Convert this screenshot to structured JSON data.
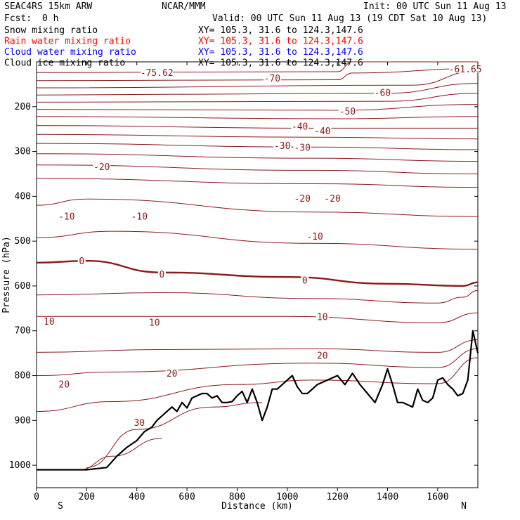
{
  "header": {
    "model": "SEAC4RS 15km ARW",
    "center": "NCAR/MMM",
    "init": "Init: 00 UTC Sun 11 Aug 13",
    "fcst_label": "Fcst:",
    "fcst_value": "0 h",
    "valid": "Valid: 00 UTC Sun 11 Aug 13 (19 CDT Sat 10 Aug 13)"
  },
  "fields": [
    {
      "label": "Snow mixing ratio",
      "xy": "XY= 105.3, 31.6 to 124.3,147.6",
      "color": "#000000"
    },
    {
      "label": "Rain water mixing ratio",
      "xy": "XY= 105.3, 31.6 to 124.3,147.6",
      "color": "#ff0000"
    },
    {
      "label": "Cloud water mixing ratio",
      "xy": "XY= 105.3, 31.6 to 124.3,147.6",
      "color": "#0000ff"
    },
    {
      "label": "Cloud ice mixing ratio",
      "xy": "XY= 105.3, 31.6 to 124.3,147.6",
      "color": "#000000"
    }
  ],
  "colors": {
    "contour": "#8b1a1a",
    "terrain": "#000000",
    "axis": "#000000"
  },
  "chart_data": {
    "type": "line",
    "xlabel": "Distance (km)",
    "ylabel": "Pressure (hPa)",
    "xlim": [
      0,
      1760
    ],
    "ylim": [
      1050,
      100
    ],
    "xticks": [
      0,
      200,
      400,
      600,
      800,
      1000,
      1200,
      1400,
      1600
    ],
    "yticks": [
      200,
      300,
      400,
      500,
      600,
      700,
      800,
      900,
      1000
    ],
    "endpoints": {
      "left": "S",
      "right": "N"
    },
    "temperature_contours": {
      "interval": 5,
      "units": "C",
      "levels": [
        {
          "label": "-75.62",
          "x": [
            0,
            1200,
            1260,
            1760
          ],
          "p": [
            124,
            122,
            100,
            100
          ]
        },
        {
          "label": "-70",
          "x": [
            0,
            1200,
            1260,
            1760
          ],
          "p": [
            142,
            140,
            125,
            115
          ]
        },
        {
          "label": "-65",
          "x": [
            0,
            1500,
            1760
          ],
          "p": [
            158,
            152,
            120
          ]
        },
        {
          "label": "-60",
          "x": [
            0,
            1400,
            1760
          ],
          "p": [
            174,
            170,
            148
          ]
        },
        {
          "label": "-55",
          "x": [
            0,
            1400,
            1760
          ],
          "p": [
            190,
            188,
            170
          ]
        },
        {
          "label": "-50",
          "x": [
            0,
            1200,
            1760
          ],
          "p": [
            206,
            208,
            195
          ]
        },
        {
          "label": "-45",
          "x": [
            0,
            1200,
            1760
          ],
          "p": [
            222,
            227,
            222
          ]
        },
        {
          "label": "-40",
          "x": [
            0,
            1100,
            1760
          ],
          "p": [
            242,
            248,
            248
          ]
        },
        {
          "label": "-35",
          "x": [
            0,
            1100,
            1760
          ],
          "p": [
            262,
            268,
            272
          ]
        },
        {
          "label": "-30",
          "x": [
            0,
            1100,
            1760
          ],
          "p": [
            282,
            290,
            296
          ]
        },
        {
          "label": "-25",
          "x": [
            0,
            1100,
            1760
          ],
          "p": [
            305,
            315,
            322
          ]
        },
        {
          "label": "-20",
          "x": [
            0,
            1100,
            1760
          ],
          "p": [
            330,
            342,
            350
          ]
        },
        {
          "label": "-15",
          "x": [
            0,
            1100,
            1760
          ],
          "p": [
            360,
            372,
            380
          ]
        },
        {
          "label": "-10",
          "x": [
            0,
            200,
            1100,
            1760
          ],
          "p": [
            420,
            406,
            435,
            445
          ]
        },
        {
          "label": "-5",
          "x": [
            0,
            300,
            1100,
            1760
          ],
          "p": [
            492,
            478,
            505,
            518
          ]
        },
        {
          "label": "0",
          "x": [
            0,
            200,
            500,
            1000,
            1400,
            1700,
            1760
          ],
          "p": [
            548,
            544,
            570,
            580,
            595,
            600,
            592
          ]
        },
        {
          "label": "5",
          "x": [
            0,
            500,
            1100,
            1600,
            1700,
            1760
          ],
          "p": [
            620,
            615,
            628,
            638,
            625,
            610
          ]
        },
        {
          "label": "10",
          "x": [
            0,
            400,
            1000,
            1600,
            1760
          ],
          "p": [
            668,
            668,
            668,
            682,
            660
          ]
        },
        {
          "label": "15",
          "x": [
            0,
            500,
            1100,
            1600,
            1760
          ],
          "p": [
            748,
            742,
            740,
            748,
            720
          ]
        },
        {
          "label": "20",
          "x": [
            0,
            300,
            1100,
            1600,
            1760
          ],
          "p": [
            800,
            792,
            772,
            782,
            740
          ]
        },
        {
          "label": "25",
          "x": [
            0,
            300,
            800,
            1100,
            1600,
            1760
          ],
          "p": [
            880,
            858,
            820,
            810,
            818,
            760
          ]
        },
        {
          "label": "30",
          "x": [
            200,
            400,
            700,
            900
          ],
          "p": [
            1005,
            920,
            870,
            860
          ]
        },
        {
          "label": "35",
          "x": [
            170,
            300,
            500
          ],
          "p": [
            1010,
            980,
            940
          ]
        }
      ]
    },
    "contour_labels": [
      {
        "text": "-75.62",
        "x": 480,
        "p": 125
      },
      {
        "text": "-70",
        "x": 940,
        "p": 138
      },
      {
        "text": "-61.65",
        "x": 1710,
        "p": 117
      },
      {
        "text": "-60",
        "x": 1380,
        "p": 170
      },
      {
        "text": "-50",
        "x": 1240,
        "p": 211
      },
      {
        "text": "-40",
        "x": 1050,
        "p": 245
      },
      {
        "text": "-40",
        "x": 1140,
        "p": 255
      },
      {
        "text": "-30",
        "x": 980,
        "p": 288
      },
      {
        "text": "-30",
        "x": 1060,
        "p": 292
      },
      {
        "text": "-20",
        "x": 260,
        "p": 335
      },
      {
        "text": "-20",
        "x": 1060,
        "p": 406
      },
      {
        "text": "-20",
        "x": 1180,
        "p": 406
      },
      {
        "text": "-10",
        "x": 120,
        "p": 446
      },
      {
        "text": "-10",
        "x": 410,
        "p": 446
      },
      {
        "text": "-10",
        "x": 1110,
        "p": 490
      },
      {
        "text": "0",
        "x": 180,
        "p": 545
      },
      {
        "text": "0",
        "x": 500,
        "p": 575
      },
      {
        "text": "0",
        "x": 1070,
        "p": 588
      },
      {
        "text": "10",
        "x": 50,
        "p": 680
      },
      {
        "text": "10",
        "x": 470,
        "p": 682
      },
      {
        "text": "10",
        "x": 1140,
        "p": 670
      },
      {
        "text": "20",
        "x": 1140,
        "p": 756
      },
      {
        "text": "20",
        "x": 540,
        "p": 796
      },
      {
        "text": "20",
        "x": 110,
        "p": 820
      },
      {
        "text": "30",
        "x": 410,
        "p": 906
      }
    ],
    "terrain": {
      "x": [
        0,
        200,
        280,
        320,
        360,
        400,
        430,
        460,
        480,
        510,
        540,
        560,
        580,
        600,
        620,
        660,
        680,
        700,
        720,
        740,
        760,
        780,
        800,
        820,
        840,
        860,
        880,
        900,
        920,
        940,
        960,
        980,
        1000,
        1020,
        1040,
        1060,
        1080,
        1120,
        1160,
        1200,
        1230,
        1260,
        1290,
        1320,
        1350,
        1380,
        1400,
        1420,
        1440,
        1460,
        1480,
        1500,
        1520,
        1540,
        1560,
        1580,
        1600,
        1620,
        1640,
        1660,
        1680,
        1700,
        1720,
        1740,
        1760
      ],
      "p": [
        1010,
        1010,
        1005,
        980,
        960,
        945,
        925,
        915,
        900,
        885,
        870,
        880,
        860,
        872,
        850,
        840,
        840,
        850,
        845,
        860,
        860,
        858,
        845,
        835,
        860,
        830,
        860,
        900,
        870,
        830,
        830,
        820,
        810,
        800,
        825,
        840,
        840,
        820,
        810,
        800,
        820,
        795,
        820,
        840,
        860,
        820,
        785,
        820,
        860,
        860,
        865,
        870,
        830,
        855,
        860,
        850,
        810,
        805,
        820,
        830,
        845,
        840,
        810,
        700,
        750
      ]
    }
  }
}
